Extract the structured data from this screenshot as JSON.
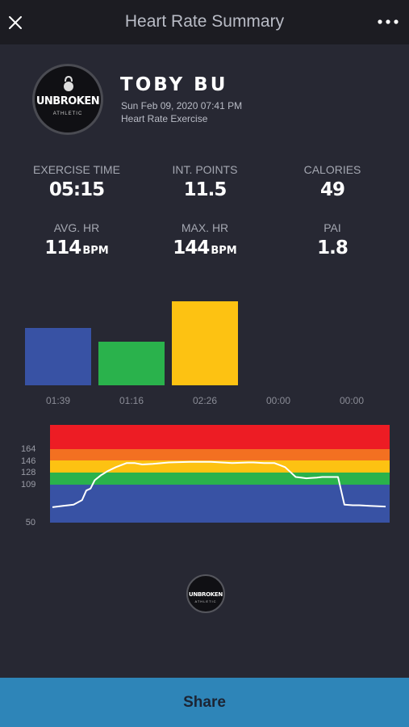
{
  "header": {
    "title": "Heart Rate Summary",
    "close_icon": "close-icon",
    "more_icon": "more-options-icon"
  },
  "profile": {
    "logo_text": "UNBROKEN",
    "logo_subtext": "ATHLETIC",
    "name": "TOBY BU",
    "date": "Sun Feb 09, 2020 07:41 PM",
    "workout_type": "Heart Rate Exercise"
  },
  "stats": {
    "exercise_time": {
      "label": "EXERCISE TIME",
      "value": "05:15"
    },
    "int_points": {
      "label": "INT. POINTS",
      "value": "11.5"
    },
    "calories": {
      "label": "CALORIES",
      "value": "49"
    },
    "avg_hr": {
      "label": "AVG. HR",
      "value": "114",
      "unit": "BPM"
    },
    "max_hr": {
      "label": "MAX. HR",
      "value": "144",
      "unit": "BPM"
    },
    "pai": {
      "label": "PAI",
      "value": "1.8"
    }
  },
  "chart_data": [
    {
      "type": "bar",
      "categories": [
        "01:39",
        "01:16",
        "02:26",
        "00:00",
        "00:00"
      ],
      "values_seconds": [
        99,
        76,
        146,
        0,
        0
      ],
      "colors": [
        "#3852a4",
        "#2ab24c",
        "#fdc212",
        "#f37021",
        "#ed1c24"
      ]
    },
    {
      "type": "line",
      "yticks": [
        "164",
        "146",
        "128",
        "109",
        "50"
      ],
      "zones": [
        {
          "from": 164,
          "to": 183,
          "color": "#ed1c24"
        },
        {
          "from": 146,
          "to": 164,
          "color": "#f37021"
        },
        {
          "from": 128,
          "to": 146,
          "color": "#fdc212"
        },
        {
          "from": 109,
          "to": 128,
          "color": "#2ab24c"
        },
        {
          "from": 50,
          "to": 109,
          "color": "#3852a4"
        }
      ],
      "x_seconds": [
        0,
        10,
        20,
        28,
        32,
        36,
        40,
        46,
        52,
        60,
        70,
        78,
        85,
        95,
        110,
        130,
        150,
        170,
        185,
        190,
        200,
        210,
        220,
        230,
        235,
        240,
        250,
        255,
        262,
        270,
        276,
        284,
        290,
        300,
        315
      ],
      "y_bpm": [
        74,
        76,
        78,
        85,
        100,
        103,
        116,
        124,
        130,
        136,
        142,
        142,
        140,
        141,
        143,
        144,
        144,
        142,
        143,
        143,
        142,
        142,
        136,
        121,
        120,
        119,
        120,
        121,
        121,
        121,
        78,
        77,
        77,
        76,
        75
      ]
    }
  ],
  "footer_logo_text": "UNBROKEN",
  "footer_logo_subtext": "ATHLETIC",
  "share_label": "Share"
}
